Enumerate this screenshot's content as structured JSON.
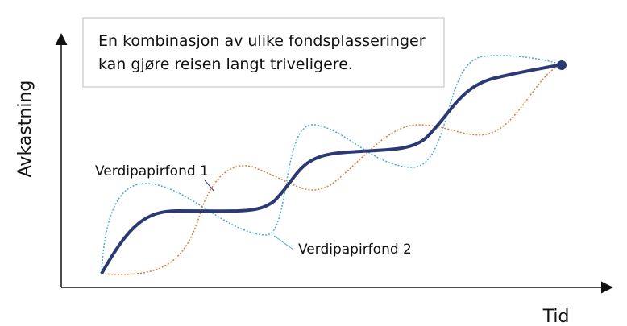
{
  "callout": {
    "lines": [
      "En kombinasjon av ulike fondsplasseringer",
      "kan gjøre reisen langt triveligere."
    ]
  },
  "axes": {
    "y_label": "Avkastning",
    "x_label": "Tid"
  },
  "series_labels": [
    "Verdipapirfond 1",
    "Verdipapirfond 2"
  ]
}
